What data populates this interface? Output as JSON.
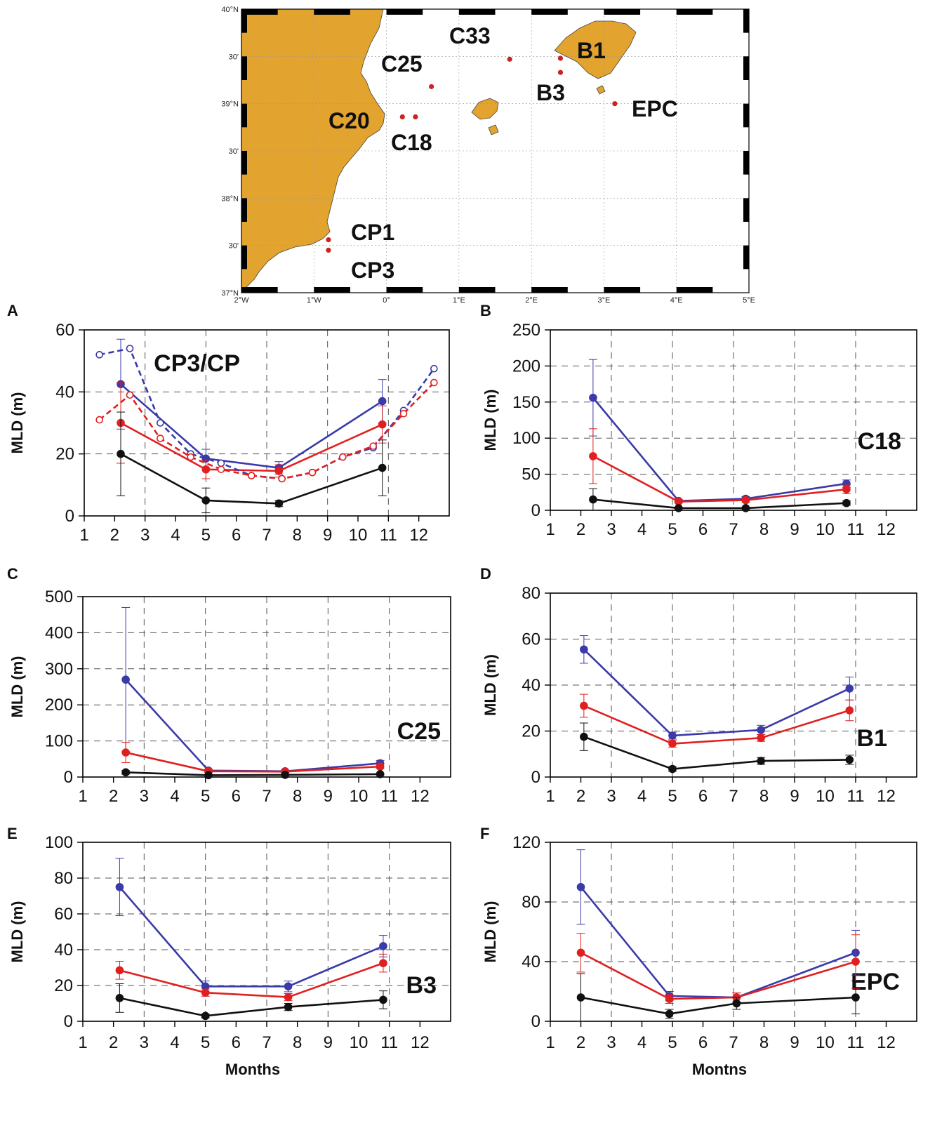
{
  "map": {
    "stations": [
      {
        "name": "C33",
        "lon": 1.7,
        "lat": 39.47
      },
      {
        "name": "C25",
        "lon": 0.62,
        "lat": 39.18
      },
      {
        "name": "B1",
        "lon": 2.4,
        "lat": 39.48
      },
      {
        "name": "B3",
        "lon": 2.4,
        "lat": 39.33
      },
      {
        "name": "EPC",
        "lon": 3.15,
        "lat": 39.0
      },
      {
        "name": "C20",
        "lon": 0.22,
        "lat": 38.86
      },
      {
        "name": "C18",
        "lon": 0.4,
        "lat": 38.86
      },
      {
        "name": "CP1",
        "lon": -0.8,
        "lat": 37.56
      },
      {
        "name": "CP3",
        "lon": -0.8,
        "lat": 37.45
      }
    ],
    "lon_labels": [
      "2°W",
      "1°W",
      "0°",
      "1°E",
      "2°E",
      "3°E",
      "4°E",
      "5°E"
    ],
    "lat_labels": [
      "40°N",
      "30'",
      "39°N",
      "30'",
      "38°N",
      "30'",
      "37°N"
    ],
    "land_color": "#e3a32f",
    "station_color": "#cc2222"
  },
  "chart_data": [
    {
      "panel": "A",
      "type": "line",
      "station_label": "CP3/CP",
      "ylabel": "MLD (m)",
      "xlabel": "",
      "ylim": [
        0,
        60
      ],
      "yticks": [
        0,
        20,
        40,
        60
      ],
      "xlim": [
        1,
        13
      ],
      "xticks": [
        1,
        2,
        3,
        4,
        5,
        6,
        7,
        8,
        9,
        10,
        11,
        12
      ],
      "series": [
        {
          "name": "blue",
          "color": "#3a3aa8",
          "x": [
            2.2,
            5,
            7.4,
            10.8
          ],
          "y": [
            42.5,
            18.5,
            15.5,
            37
          ],
          "err": [
            14.5,
            3,
            2,
            7
          ]
        },
        {
          "name": "red",
          "color": "#e02020",
          "x": [
            2.2,
            5,
            7.4,
            10.8
          ],
          "y": [
            30,
            15,
            14.5,
            29.5
          ],
          "err": [
            13,
            3,
            2,
            6
          ]
        },
        {
          "name": "black",
          "color": "#111111",
          "x": [
            2.2,
            5,
            7.4,
            10.8
          ],
          "y": [
            20,
            5,
            4,
            15.5
          ],
          "err": [
            13.5,
            4,
            1,
            9
          ]
        },
        {
          "name": "blue-climatology",
          "color": "#3a3aa8",
          "dashed": true,
          "open": true,
          "x": [
            1.5,
            2.5,
            3.5,
            4.5,
            5.5,
            6.5,
            7.5,
            8.5,
            9.5,
            10.5,
            11.5,
            12.5
          ],
          "y": [
            52,
            54,
            30,
            20,
            17,
            13,
            12,
            14,
            19,
            22,
            34,
            47.5
          ]
        },
        {
          "name": "red-climatology",
          "color": "#e02020",
          "dashed": true,
          "open": true,
          "x": [
            1.5,
            2.5,
            3.5,
            4.5,
            5.5,
            6.5,
            7.5,
            8.5,
            9.5,
            10.5,
            11.5,
            12.5
          ],
          "y": [
            31,
            39,
            25,
            19,
            15,
            13,
            12,
            14,
            19,
            22.5,
            33,
            43
          ]
        }
      ]
    },
    {
      "panel": "B",
      "type": "line",
      "station_label": "C18",
      "ylabel": "MLD (m)",
      "xlabel": "",
      "ylim": [
        0,
        250
      ],
      "yticks": [
        0,
        50,
        100,
        150,
        200,
        250
      ],
      "xlim": [
        1,
        13
      ],
      "xticks": [
        1,
        2,
        3,
        4,
        5,
        6,
        7,
        8,
        9,
        10,
        11,
        12
      ],
      "series": [
        {
          "name": "blue",
          "color": "#3a3aa8",
          "x": [
            2.4,
            5.2,
            7.4,
            10.7
          ],
          "y": [
            156,
            13,
            16,
            37
          ],
          "err": [
            53,
            2,
            3,
            5
          ]
        },
        {
          "name": "red",
          "color": "#e02020",
          "x": [
            2.4,
            5.2,
            7.4,
            10.7
          ],
          "y": [
            75,
            12,
            14,
            29
          ],
          "err": [
            38,
            2,
            3,
            6
          ]
        },
        {
          "name": "black",
          "color": "#111111",
          "x": [
            2.4,
            5.2,
            7.4,
            10.7
          ],
          "y": [
            15,
            3,
            3,
            10
          ],
          "err": [
            15,
            1,
            1,
            3
          ]
        }
      ]
    },
    {
      "panel": "C",
      "type": "line",
      "station_label": "C25",
      "ylabel": "MLD (m)",
      "xlabel": "",
      "ylim": [
        0,
        500
      ],
      "yticks": [
        0,
        100,
        200,
        300,
        400,
        500
      ],
      "xlim": [
        1,
        13
      ],
      "xticks": [
        1,
        2,
        3,
        4,
        5,
        6,
        7,
        8,
        9,
        10,
        11,
        12
      ],
      "series": [
        {
          "name": "blue",
          "color": "#3a3aa8",
          "x": [
            2.4,
            5.1,
            7.6,
            10.7
          ],
          "y": [
            270,
            18,
            16,
            38
          ],
          "err": [
            200,
            3,
            3,
            8
          ]
        },
        {
          "name": "red",
          "color": "#e02020",
          "x": [
            2.4,
            5.1,
            7.6,
            10.7
          ],
          "y": [
            68,
            16,
            15,
            29
          ],
          "err": [
            28,
            3,
            3,
            6
          ]
        },
        {
          "name": "black",
          "color": "#111111",
          "x": [
            2.4,
            5.1,
            7.6,
            10.7
          ],
          "y": [
            13,
            5,
            6,
            8
          ],
          "err": [
            5,
            1,
            2,
            2
          ]
        }
      ]
    },
    {
      "panel": "D",
      "type": "line",
      "station_label": "B1",
      "ylabel": "MLD (m)",
      "xlabel": "",
      "ylim": [
        0,
        80
      ],
      "yticks": [
        0,
        20,
        40,
        60,
        80
      ],
      "xlim": [
        1,
        13
      ],
      "xticks": [
        1,
        2,
        3,
        4,
        5,
        6,
        7,
        8,
        9,
        10,
        11,
        12
      ],
      "series": [
        {
          "name": "blue",
          "color": "#3a3aa8",
          "x": [
            2.1,
            5.0,
            7.9,
            10.8
          ],
          "y": [
            55.5,
            18,
            20.5,
            38.5
          ],
          "err": [
            6,
            1.5,
            2,
            5
          ]
        },
        {
          "name": "red",
          "color": "#e02020",
          "x": [
            2.1,
            5.0,
            7.9,
            10.8
          ],
          "y": [
            31,
            14.5,
            17,
            29
          ],
          "err": [
            5,
            1.5,
            1.5,
            4.5
          ]
        },
        {
          "name": "black",
          "color": "#111111",
          "x": [
            2.1,
            5.0,
            7.9,
            10.8
          ],
          "y": [
            17.5,
            3.5,
            7,
            7.5
          ],
          "err": [
            6,
            1,
            1.5,
            2
          ]
        }
      ]
    },
    {
      "panel": "E",
      "type": "line",
      "station_label": "B3",
      "ylabel": "MLD (m)",
      "xlabel": "Months",
      "ylim": [
        0,
        100
      ],
      "yticks": [
        0,
        20,
        40,
        60,
        80,
        100
      ],
      "xlim": [
        1,
        13
      ],
      "xticks": [
        1,
        2,
        3,
        4,
        5,
        6,
        7,
        8,
        9,
        10,
        11,
        12
      ],
      "series": [
        {
          "name": "blue",
          "color": "#3a3aa8",
          "x": [
            2.2,
            5,
            7.7,
            10.8
          ],
          "y": [
            75,
            19.5,
            19.5,
            42
          ],
          "err": [
            16,
            3,
            3,
            6
          ]
        },
        {
          "name": "red",
          "color": "#e02020",
          "x": [
            2.2,
            5,
            7.7,
            10.8
          ],
          "y": [
            28.5,
            16,
            13.5,
            32.5
          ],
          "err": [
            5,
            2,
            2,
            5
          ]
        },
        {
          "name": "black",
          "color": "#111111",
          "x": [
            2.2,
            5,
            7.7,
            10.8
          ],
          "y": [
            13,
            3,
            8,
            12
          ],
          "err": [
            8,
            1,
            2,
            5
          ]
        }
      ]
    },
    {
      "panel": "F",
      "type": "line",
      "station_label": "EPC",
      "ylabel": "MLD (m)",
      "xlabel": "Montns",
      "ylim": [
        0,
        120
      ],
      "yticks": [
        0,
        40,
        80,
        120
      ],
      "xlim": [
        1,
        13
      ],
      "xticks": [
        1,
        2,
        3,
        4,
        5,
        6,
        7,
        8,
        9,
        10,
        11,
        12
      ],
      "series": [
        {
          "name": "blue",
          "color": "#3a3aa8",
          "x": [
            2,
            4.9,
            7.1,
            11
          ],
          "y": [
            90,
            17,
            16,
            46
          ],
          "err": [
            25,
            3,
            3,
            15
          ]
        },
        {
          "name": "red",
          "color": "#e02020",
          "x": [
            2,
            4.9,
            7.1,
            11
          ],
          "y": [
            46,
            15,
            16,
            40
          ],
          "err": [
            13,
            3,
            3,
            18
          ]
        },
        {
          "name": "black",
          "color": "#111111",
          "x": [
            2,
            4.9,
            7.1,
            11
          ],
          "y": [
            16,
            5,
            12,
            16
          ],
          "err": [
            16,
            3,
            4,
            11
          ]
        }
      ]
    }
  ]
}
